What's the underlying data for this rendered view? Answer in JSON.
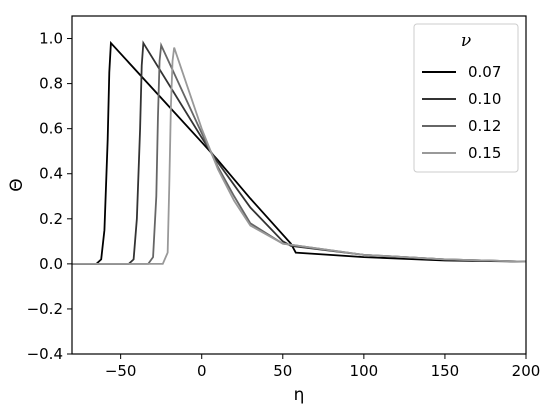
{
  "chart_data": {
    "type": "line",
    "xlabel": "η",
    "ylabel": "Θ",
    "xlim": [
      -80,
      200
    ],
    "ylim": [
      -0.4,
      1.1
    ],
    "x_ticks": [
      -50,
      0,
      50,
      100,
      150,
      200
    ],
    "y_ticks": [
      -0.4,
      -0.2,
      0.0,
      0.2,
      0.4,
      0.6,
      0.8,
      1.0
    ],
    "grid": false,
    "legend": {
      "title": "ν",
      "position": "top-right"
    },
    "series": [
      {
        "name": "0.07",
        "color": "#000000",
        "x": [
          -80,
          -65,
          -62,
          -60,
          -58,
          -57,
          -56,
          0,
          10,
          30,
          55,
          58,
          100,
          150,
          200
        ],
        "y": [
          0.0,
          0.0,
          0.02,
          0.15,
          0.55,
          0.85,
          0.98,
          0.54,
          0.46,
          0.29,
          0.09,
          0.05,
          0.03,
          0.015,
          0.01
        ]
      },
      {
        "name": "0.10",
        "color": "#333333",
        "x": [
          -80,
          -45,
          -42,
          -40,
          -38,
          -37,
          -36,
          0,
          10,
          30,
          50,
          55,
          100,
          150,
          200
        ],
        "y": [
          0.0,
          0.0,
          0.02,
          0.2,
          0.6,
          0.88,
          0.98,
          0.56,
          0.45,
          0.25,
          0.1,
          0.08,
          0.04,
          0.02,
          0.01
        ]
      },
      {
        "name": "0.12",
        "color": "#666666",
        "x": [
          -80,
          -33,
          -30,
          -28,
          -27,
          -26,
          -25,
          0,
          10,
          20,
          30,
          50,
          100,
          150,
          200
        ],
        "y": [
          0.0,
          0.0,
          0.03,
          0.3,
          0.65,
          0.9,
          0.97,
          0.58,
          0.43,
          0.3,
          0.18,
          0.09,
          0.04,
          0.02,
          0.01
        ]
      },
      {
        "name": "0.15",
        "color": "#999999",
        "x": [
          -80,
          -24,
          -21,
          -20,
          -19,
          -18,
          -17,
          0,
          10,
          20,
          30,
          50,
          100,
          150,
          200
        ],
        "y": [
          0.0,
          0.0,
          0.05,
          0.35,
          0.7,
          0.9,
          0.96,
          0.6,
          0.42,
          0.28,
          0.17,
          0.09,
          0.04,
          0.02,
          0.01
        ]
      }
    ]
  }
}
